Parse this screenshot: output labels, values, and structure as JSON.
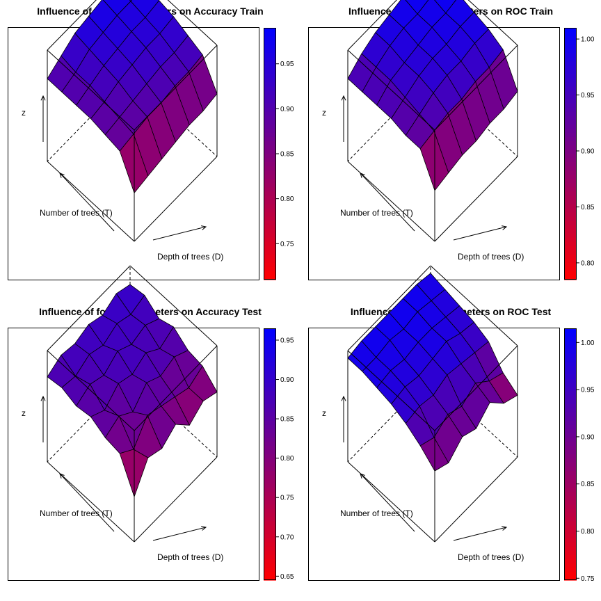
{
  "panels": [
    {
      "title": "Influence of forest parameters on Accuracy Train",
      "xlabel": "Depth of trees (D)",
      "ylabel": "Number of trees (T)",
      "zlabel": "z",
      "colorbar": {
        "min": 0.71,
        "max": 0.99,
        "ticks": [
          "0.75",
          "0.80",
          "0.85",
          "0.90",
          "0.95"
        ],
        "tick_values": [
          0.75,
          0.8,
          0.85,
          0.9,
          0.95
        ]
      },
      "colors": {
        "low": "#ff0000",
        "high": "#0000ff"
      }
    },
    {
      "title": "Influence of forest parameters on ROC Train",
      "xlabel": "Depth of trees (D)",
      "ylabel": "Number of trees (T)",
      "zlabel": "z",
      "colorbar": {
        "min": 0.785,
        "max": 1.01,
        "ticks": [
          "0.80",
          "0.85",
          "0.90",
          "0.95",
          "1.00"
        ],
        "tick_values": [
          0.8,
          0.85,
          0.9,
          0.95,
          1.0
        ]
      },
      "colors": {
        "low": "#ff0000",
        "high": "#0000ff"
      }
    },
    {
      "title": "Influence of forest parameters on Accuracy Test",
      "xlabel": "Depth of trees (D)",
      "ylabel": "Number of trees (T)",
      "zlabel": "z",
      "colorbar": {
        "min": 0.645,
        "max": 0.965,
        "ticks": [
          "0.65",
          "0.70",
          "0.75",
          "0.80",
          "0.85",
          "0.90",
          "0.95"
        ],
        "tick_values": [
          0.65,
          0.7,
          0.75,
          0.8,
          0.85,
          0.9,
          0.95
        ]
      },
      "colors": {
        "low": "#ff0000",
        "high": "#0000ff"
      }
    },
    {
      "title": "Influence of forest parameters on ROC Test",
      "xlabel": "Depth of trees (D)",
      "ylabel": "Number of trees (T)",
      "zlabel": "z",
      "colorbar": {
        "min": 0.748,
        "max": 1.015,
        "ticks": [
          "0.75",
          "0.80",
          "0.85",
          "0.90",
          "0.95",
          "1.00"
        ],
        "tick_values": [
          0.75,
          0.8,
          0.85,
          0.9,
          0.95,
          1.0
        ]
      },
      "colors": {
        "low": "#ff0000",
        "high": "#0000ff"
      }
    }
  ],
  "chart_data": [
    {
      "type": "heatmap",
      "title": "Influence of forest parameters on Accuracy Train",
      "xlabel": "Depth of trees (D)",
      "ylabel": "Number of trees (T)",
      "zlabel": "z",
      "z_range": [
        0.71,
        0.99
      ],
      "z": [
        [
          0.77,
          0.78,
          0.79,
          0.8,
          0.81,
          0.81,
          0.82
        ],
        [
          0.87,
          0.88,
          0.89,
          0.89,
          0.9,
          0.9,
          0.91
        ],
        [
          0.88,
          0.89,
          0.9,
          0.91,
          0.92,
          0.92,
          0.93
        ],
        [
          0.89,
          0.9,
          0.92,
          0.93,
          0.94,
          0.94,
          0.95
        ],
        [
          0.89,
          0.91,
          0.93,
          0.94,
          0.95,
          0.95,
          0.96
        ],
        [
          0.89,
          0.91,
          0.94,
          0.95,
          0.96,
          0.96,
          0.97
        ],
        [
          0.89,
          0.92,
          0.95,
          0.96,
          0.97,
          0.97,
          0.98
        ]
      ]
    },
    {
      "type": "heatmap",
      "title": "Influence of forest parameters on ROC Train",
      "xlabel": "Depth of trees (D)",
      "ylabel": "Number of trees (T)",
      "zlabel": "z",
      "z_range": [
        0.785,
        1.01
      ],
      "z": [
        [
          0.84,
          0.85,
          0.86,
          0.86,
          0.87,
          0.87,
          0.88
        ],
        [
          0.92,
          0.93,
          0.94,
          0.94,
          0.95,
          0.95,
          0.96
        ],
        [
          0.92,
          0.94,
          0.96,
          0.97,
          0.97,
          0.98,
          0.98
        ],
        [
          0.93,
          0.95,
          0.97,
          0.98,
          0.98,
          0.99,
          0.99
        ],
        [
          0.93,
          0.96,
          0.97,
          0.98,
          0.99,
          0.99,
          1.0
        ],
        [
          0.93,
          0.96,
          0.98,
          0.99,
          0.99,
          1.0,
          1.0
        ],
        [
          0.93,
          0.96,
          0.98,
          0.99,
          1.0,
          1.0,
          1.0
        ]
      ]
    },
    {
      "type": "heatmap",
      "title": "Influence of forest parameters on Accuracy Test",
      "xlabel": "Depth of trees (D)",
      "ylabel": "Number of trees (T)",
      "zlabel": "z",
      "z_range": [
        0.645,
        0.965
      ],
      "z": [
        [
          0.7,
          0.8,
          0.78,
          0.82,
          0.76,
          0.8,
          0.78
        ],
        [
          0.82,
          0.78,
          0.86,
          0.84,
          0.82,
          0.8,
          0.83
        ],
        [
          0.83,
          0.86,
          0.82,
          0.88,
          0.85,
          0.87,
          0.84
        ],
        [
          0.86,
          0.83,
          0.88,
          0.86,
          0.89,
          0.85,
          0.88
        ],
        [
          0.85,
          0.88,
          0.86,
          0.9,
          0.87,
          0.89,
          0.86
        ],
        [
          0.87,
          0.86,
          0.89,
          0.87,
          0.9,
          0.88,
          0.9
        ],
        [
          0.86,
          0.89,
          0.88,
          0.9,
          0.88,
          0.91,
          0.89
        ]
      ]
    },
    {
      "type": "heatmap",
      "title": "Influence of forest parameters on ROC Test",
      "xlabel": "Depth of trees (D)",
      "ylabel": "Number of trees (T)",
      "zlabel": "z",
      "z_range": [
        0.748,
        1.015
      ],
      "z": [
        [
          0.88,
          0.86,
          0.9,
          0.88,
          0.92,
          0.87,
          0.85
        ],
        [
          0.92,
          0.9,
          0.93,
          0.91,
          0.94,
          0.9,
          0.88
        ],
        [
          0.95,
          0.96,
          0.95,
          0.97,
          0.96,
          0.95,
          0.94
        ],
        [
          0.97,
          0.98,
          0.97,
          0.98,
          0.99,
          0.97,
          0.96
        ],
        [
          0.98,
          0.99,
          0.98,
          0.99,
          0.99,
          0.98,
          0.97
        ],
        [
          0.99,
          0.99,
          1.0,
          0.99,
          1.0,
          0.99,
          0.98
        ],
        [
          0.99,
          1.0,
          1.0,
          1.0,
          1.0,
          1.0,
          0.99
        ]
      ]
    }
  ]
}
